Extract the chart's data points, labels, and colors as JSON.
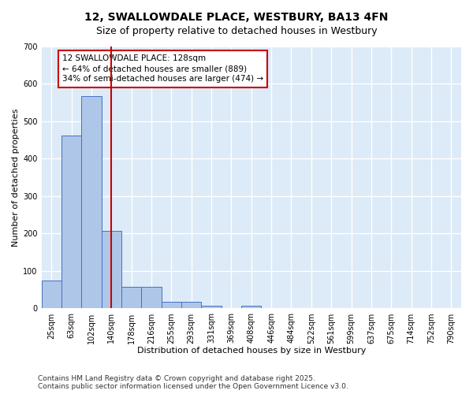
{
  "title_line1": "12, SWALLOWDALE PLACE, WESTBURY, BA13 4FN",
  "title_line2": "Size of property relative to detached houses in Westbury",
  "xlabel": "Distribution of detached houses by size in Westbury",
  "ylabel": "Number of detached properties",
  "categories": [
    "25sqm",
    "63sqm",
    "102sqm",
    "140sqm",
    "178sqm",
    "216sqm",
    "255sqm",
    "293sqm",
    "331sqm",
    "369sqm",
    "408sqm",
    "446sqm",
    "484sqm",
    "522sqm",
    "561sqm",
    "599sqm",
    "637sqm",
    "675sqm",
    "714sqm",
    "752sqm",
    "790sqm"
  ],
  "values": [
    75,
    463,
    567,
    207,
    57,
    57,
    18,
    18,
    8,
    0,
    8,
    0,
    0,
    0,
    0,
    0,
    0,
    0,
    0,
    0,
    0
  ],
  "bar_color": "#aec6e8",
  "bar_edge_color": "#4472c4",
  "background_color": "#ddeaf7",
  "grid_color": "#ffffff",
  "vline_color": "#cc0000",
  "annotation_box_text": "12 SWALLOWDALE PLACE: 128sqm\n← 64% of detached houses are smaller (889)\n34% of semi-detached houses are larger (474) →",
  "annotation_box_color": "#cc0000",
  "ylim": [
    0,
    700
  ],
  "yticks": [
    0,
    100,
    200,
    300,
    400,
    500,
    600,
    700
  ],
  "footer_line1": "Contains HM Land Registry data © Crown copyright and database right 2025.",
  "footer_line2": "Contains public sector information licensed under the Open Government Licence v3.0.",
  "title_fontsize": 10,
  "subtitle_fontsize": 9,
  "axis_label_fontsize": 8,
  "tick_fontsize": 7,
  "annotation_fontsize": 7.5,
  "footer_fontsize": 6.5
}
